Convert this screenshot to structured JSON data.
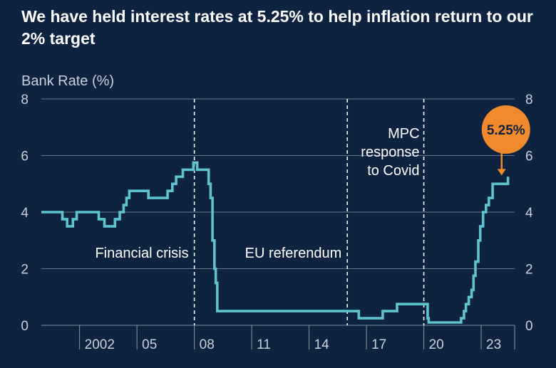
{
  "title": "We have held interest rates at 5.25% to help inflation return to our 2% target",
  "colors": {
    "background": "#0d2340",
    "line": "#5fc3cf",
    "grid": "#8a97a8",
    "callout": "#f08a2c",
    "text": "#ffffff"
  },
  "chart_data": {
    "type": "line",
    "title": "We have held interest rates at 5.25% to help inflation return to our 2% target",
    "ylabel": "Bank Rate (%)",
    "xlabel": "",
    "ylim": [
      0,
      8
    ],
    "xlim": [
      2000.0,
      2024.75
    ],
    "y_ticks": [
      0,
      2,
      4,
      6,
      8
    ],
    "x_ticks": [
      {
        "label": "2002",
        "x": 2002
      },
      {
        "label": "05",
        "x": 2005
      },
      {
        "label": "08",
        "x": 2008
      },
      {
        "label": "11",
        "x": 2011
      },
      {
        "label": "14",
        "x": 2014
      },
      {
        "label": "17",
        "x": 2017
      },
      {
        "label": "20",
        "x": 2020
      },
      {
        "label": "23",
        "x": 2023
      }
    ],
    "grid": true,
    "series": [
      {
        "step": true,
        "x": [
          2000.0,
          2001.1,
          2001.35,
          2001.65,
          2001.85,
          2002.1,
          2003.0,
          2003.3,
          2003.85,
          2004.1,
          2004.3,
          2004.45,
          2004.6,
          2005.6,
          2006.6,
          2006.85,
          2007.05,
          2007.4,
          2007.95,
          2008.15,
          2008.75,
          2008.85,
          2008.95,
          2009.05,
          2009.12,
          2009.2,
          2016.6,
          2017.85,
          2018.6,
          2020.2,
          2020.25,
          2021.95,
          2022.1,
          2022.2,
          2022.35,
          2022.5,
          2022.6,
          2022.7,
          2022.85,
          2022.95,
          2023.1,
          2023.25,
          2023.4,
          2023.6,
          2024.4
        ],
        "values": [
          4.0,
          3.75,
          3.5,
          3.75,
          4.0,
          4.0,
          3.75,
          3.5,
          3.75,
          4.0,
          4.25,
          4.5,
          4.75,
          4.5,
          4.75,
          5.0,
          5.25,
          5.5,
          5.75,
          5.5,
          5.0,
          4.5,
          3.0,
          2.0,
          1.5,
          0.5,
          0.25,
          0.5,
          0.75,
          0.25,
          0.1,
          0.25,
          0.5,
          0.75,
          1.0,
          1.25,
          1.75,
          2.25,
          3.0,
          3.5,
          4.0,
          4.25,
          4.5,
          5.0,
          5.25
        ]
      }
    ],
    "events": [
      {
        "label": "Financial crisis",
        "x": 2008.0
      },
      {
        "label": "EU referendum",
        "x": 2016.0
      },
      {
        "label": "MPC response to Covid",
        "x": 2020.0
      }
    ],
    "callout": {
      "label": "5.25%",
      "x": 2023.25,
      "value": 5.25
    }
  }
}
